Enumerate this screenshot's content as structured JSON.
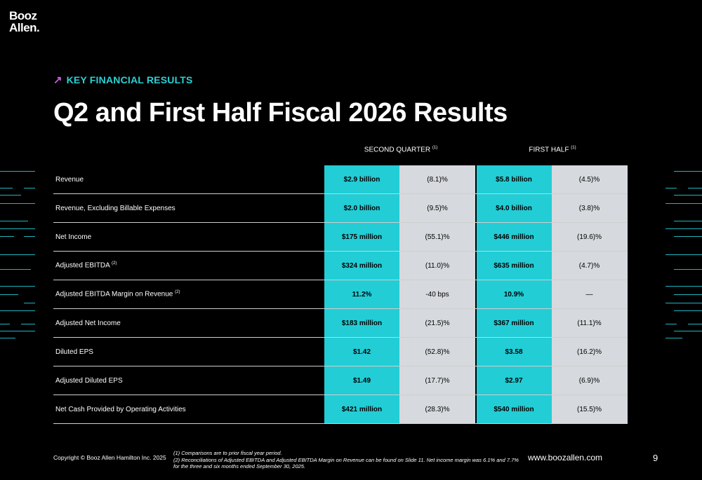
{
  "logo": {
    "line1": "Booz",
    "line2": "Allen."
  },
  "eyebrow": {
    "arrow": "↗",
    "text": "KEY FINANCIAL RESULTS"
  },
  "title": "Q2 and First Half Fiscal 2026 Results",
  "columns": {
    "second_quarter": {
      "label": "SECOND QUARTER",
      "note": "(1)"
    },
    "first_half": {
      "label": "FIRST HALF",
      "note": "(1)"
    }
  },
  "rows": [
    {
      "label": "Revenue",
      "note": "",
      "q2_value": "$2.9 billion",
      "q2_change": "(8.1)%",
      "h1_value": "$5.8 billion",
      "h1_change": "(4.5)%"
    },
    {
      "label": "Revenue, Excluding Billable Expenses",
      "note": "",
      "q2_value": "$2.0 billion",
      "q2_change": "(9.5)%",
      "h1_value": "$4.0 billion",
      "h1_change": "(3.8)%"
    },
    {
      "label": "Net Income",
      "note": "",
      "q2_value": "$175 million",
      "q2_change": "(55.1)%",
      "h1_value": "$446 million",
      "h1_change": "(19.6)%"
    },
    {
      "label": "Adjusted EBITDA",
      "note": "(2)",
      "q2_value": "$324 million",
      "q2_change": "(11.0)%",
      "h1_value": "$635 million",
      "h1_change": "(4.7)%"
    },
    {
      "label": "Adjusted EBITDA Margin on Revenue",
      "note": "(2)",
      "q2_value": "11.2%",
      "q2_change": "-40 bps",
      "h1_value": "10.9%",
      "h1_change": "—"
    },
    {
      "label": "Adjusted Net Income",
      "note": "",
      "q2_value": "$183 million",
      "q2_change": "(21.5)%",
      "h1_value": "$367 million",
      "h1_change": "(11.1)%"
    },
    {
      "label": "Diluted EPS",
      "note": "",
      "q2_value": "$1.42",
      "q2_change": "(52.8)%",
      "h1_value": "$3.58",
      "h1_change": "(16.2)%"
    },
    {
      "label": "Adjusted Diluted EPS",
      "note": "",
      "q2_value": "$1.49",
      "q2_change": "(17.7)%",
      "h1_value": "$2.97",
      "h1_change": "(6.9)%"
    },
    {
      "label": "Net Cash Provided by Operating Activities",
      "note": "",
      "q2_value": "$421 million",
      "q2_change": "(28.3)%",
      "h1_value": "$540 million",
      "h1_change": "(15.5)%"
    }
  ],
  "footer": {
    "copyright": "Copyright © Booz Allen Hamilton Inc. 2025",
    "footnote1": "(1) Comparisons are to prior fiscal year period.",
    "footnote2": "(2) Reconciliations of Adjusted EBITDA and Adjusted EBITDA Margin on Revenue can be found on Slide 11. Net income margin was 6.1% and 7.7% for the three and six months ended September 30, 2025.",
    "url": "www.boozallen.com",
    "page_number": "9"
  },
  "colors": {
    "accent_teal": "#22cdd6",
    "accent_magenta": "#c65ce0",
    "change_cell": "#d6d9dd"
  }
}
